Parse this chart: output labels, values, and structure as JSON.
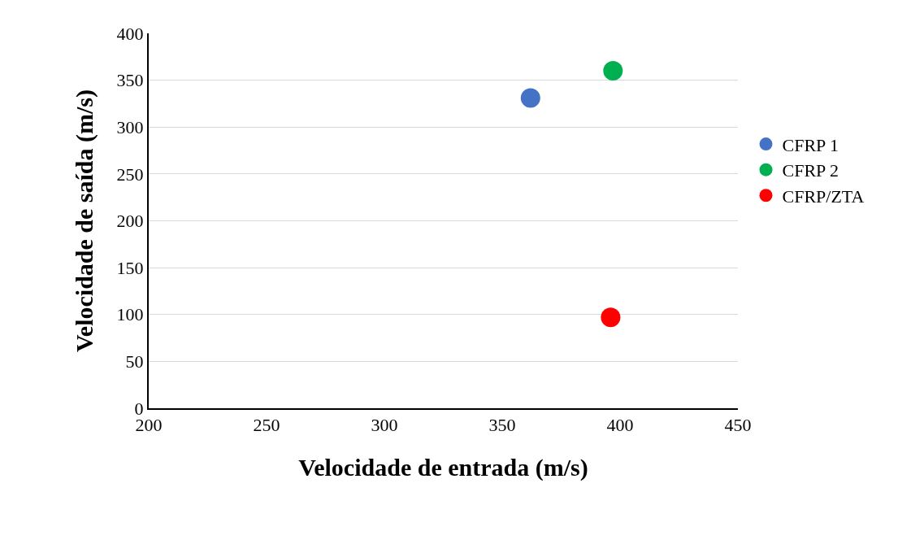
{
  "chart_data": {
    "type": "scatter",
    "xlabel": "Velocidade de entrada (m/s)",
    "ylabel": "Velocidade de saída (m/s)",
    "series": [
      {
        "name": "CFRP 1",
        "color": "#4472c4",
        "x": [
          362
        ],
        "values": [
          331
        ]
      },
      {
        "name": "CFRP 2",
        "color": "#00b050",
        "x": [
          397
        ],
        "values": [
          360
        ]
      },
      {
        "name": "CFRP/ZTA",
        "color": "#ff0000",
        "x": [
          396
        ],
        "values": [
          97
        ]
      }
    ],
    "xlim": [
      200,
      450
    ],
    "xticks": [
      200,
      250,
      300,
      350,
      400,
      450
    ],
    "ylim": [
      0,
      400
    ],
    "yticks": [
      0,
      50,
      100,
      150,
      200,
      250,
      300,
      350,
      400
    ],
    "grid": "y",
    "legend": "right",
    "marker": "circle"
  }
}
